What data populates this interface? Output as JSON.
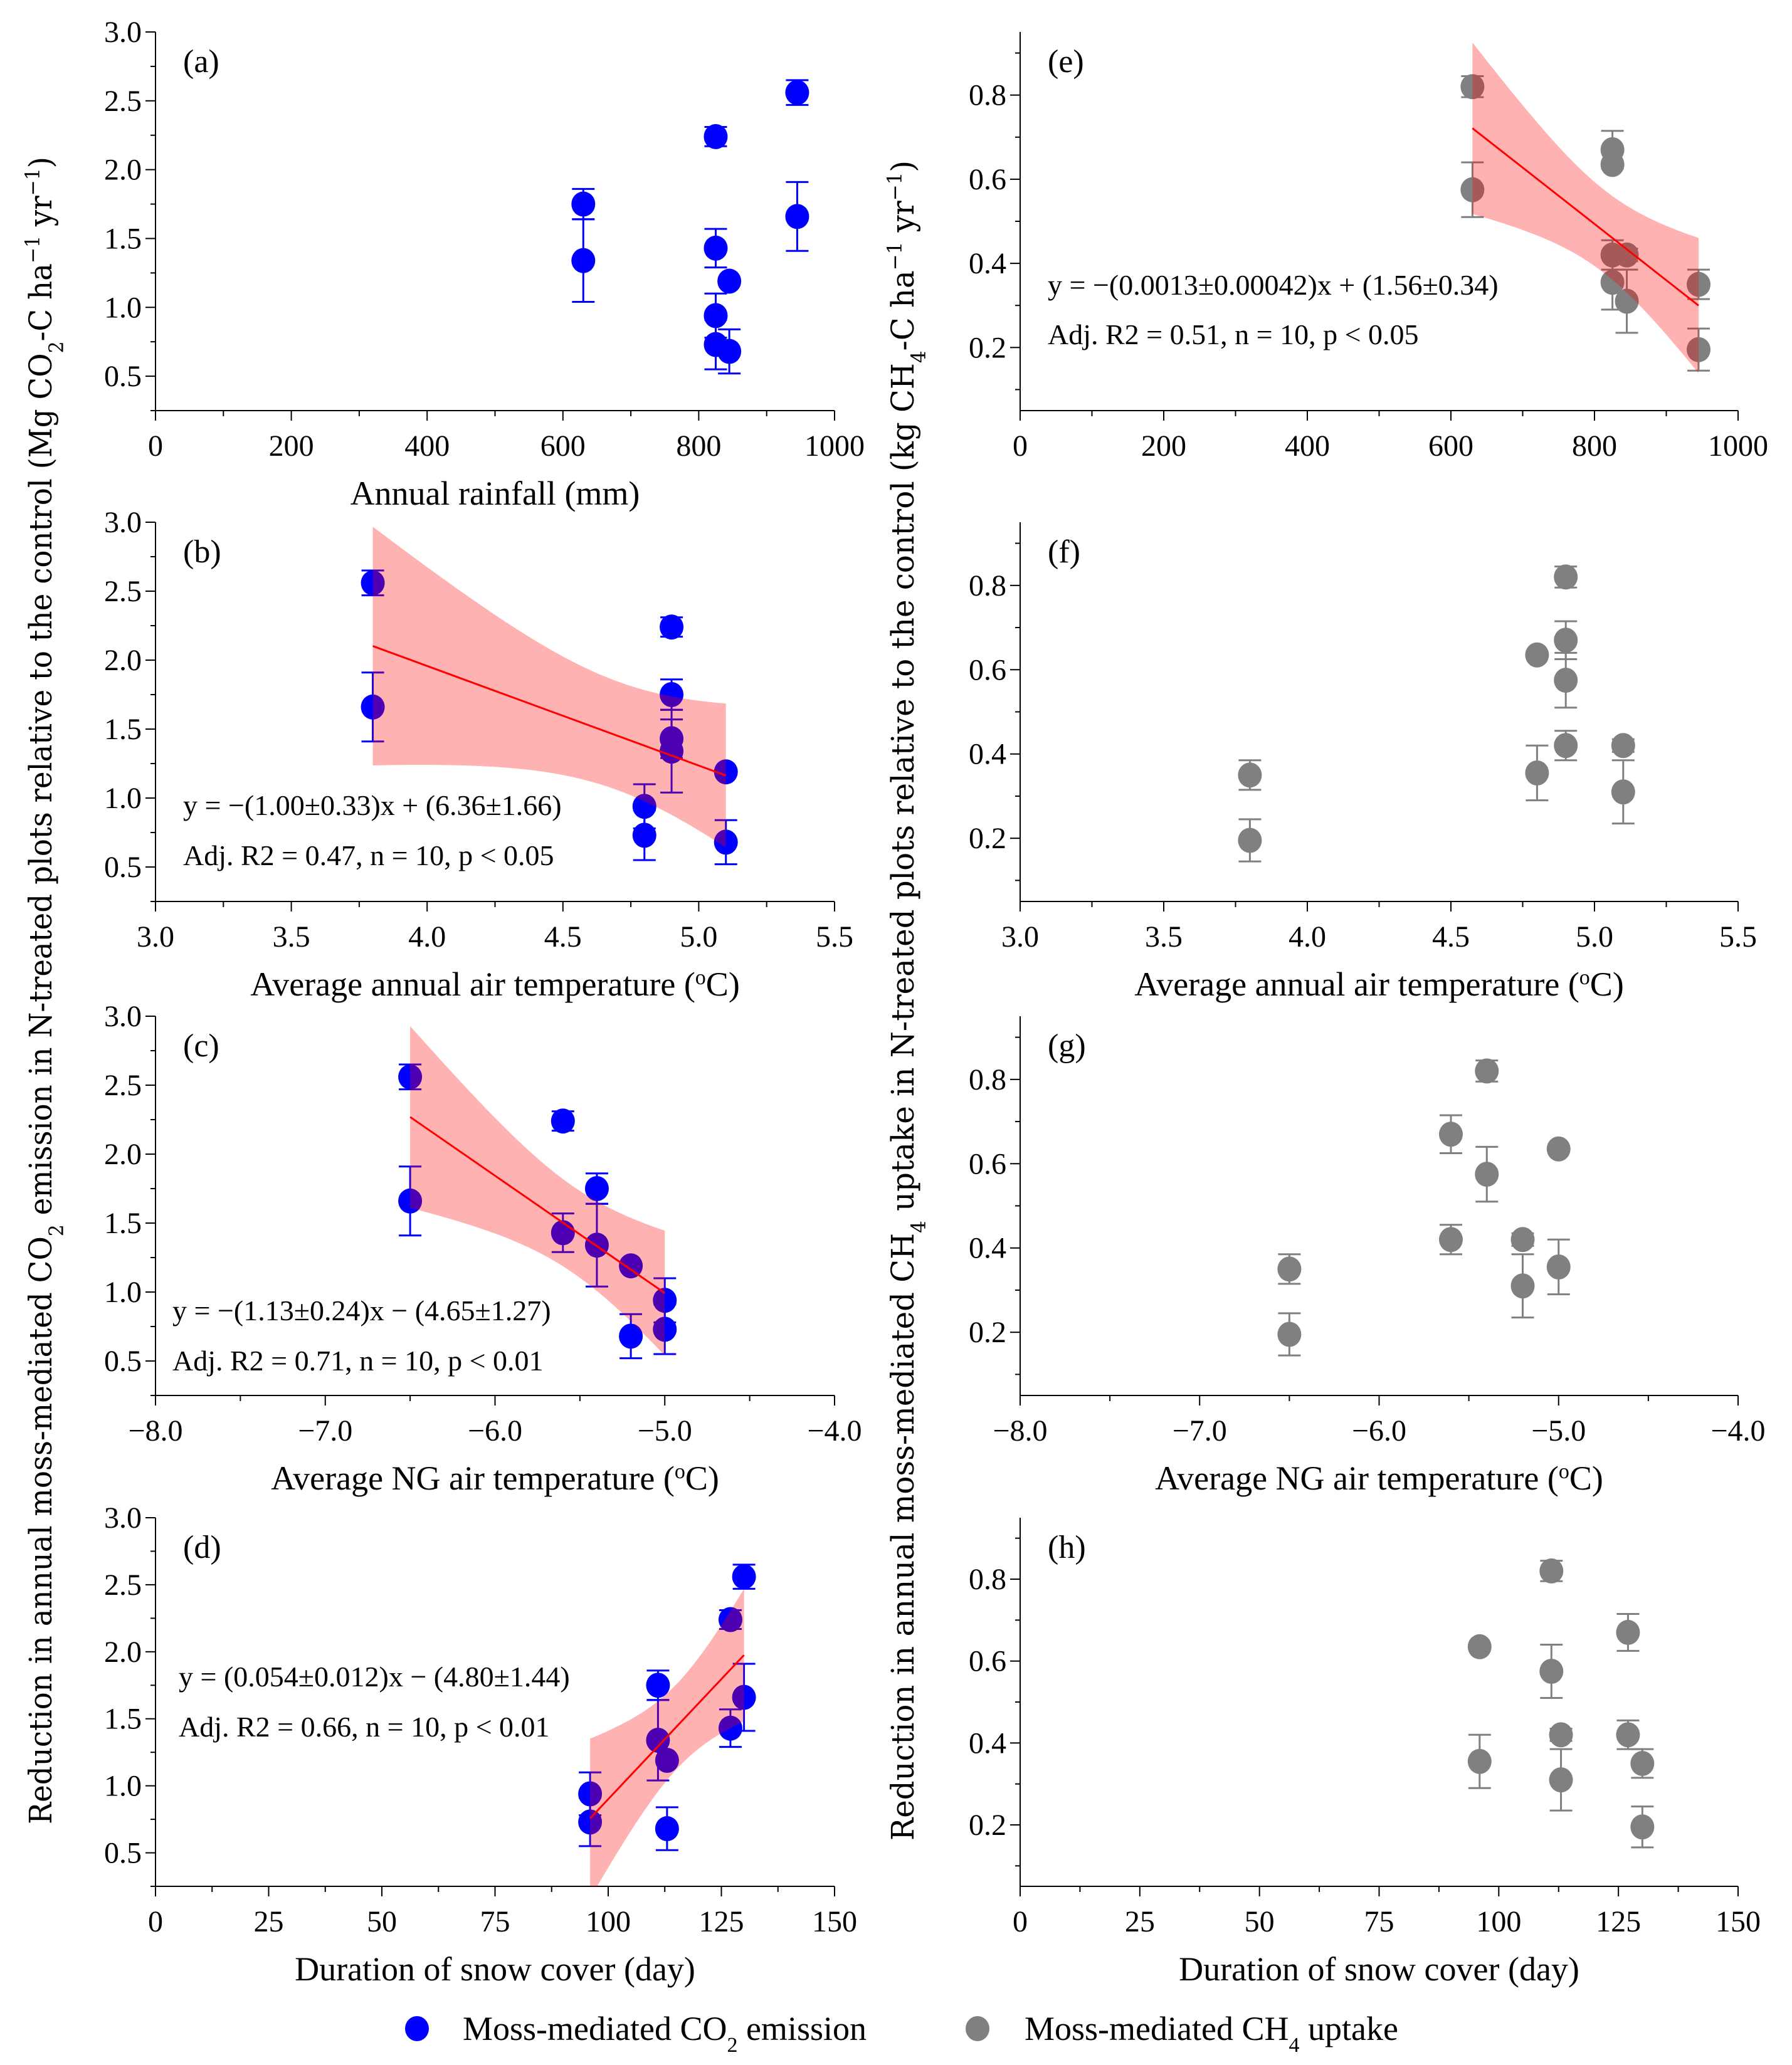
{
  "y_labels": {
    "left": "Reduction in annual moss-mediated CO2 emission in N-treated plots relative to the control (Mg CO2-C ha−1 yr−1)",
    "right": "Reduction in annual moss-mediated CH4 uptake in N-treated plots relative to the control (kg CH4-C ha−1 yr−1)"
  },
  "legend": {
    "co2": {
      "label": "Moss-mediated CO2 emission",
      "color": "#0000FF"
    },
    "ch4": {
      "label": "Moss-mediated CH4 uptake",
      "color": "#808080"
    }
  },
  "colors": {
    "band": "#FF0000",
    "fit_line": "#FF0000",
    "axis": "#000000"
  },
  "chart_data": [
    {
      "panel": "(a)",
      "type": "scatter",
      "xlabel": "Annual rainfall (mm)",
      "ylabel": "Mg CO2-C ha−1 yr−1",
      "xlim": [
        0,
        1000
      ],
      "ylim": [
        0.25,
        3.0
      ],
      "xticks": [
        0,
        200,
        400,
        600,
        800,
        1000
      ],
      "xtick_labels": [
        "0",
        "200",
        "400",
        "600",
        "800",
        "1000"
      ],
      "xminor": 100,
      "yticks": [
        0.5,
        1.0,
        1.5,
        2.0,
        2.5,
        3.0
      ],
      "ytick_labels": [
        "0.5",
        "1.0",
        "1.5",
        "2.0",
        "2.5",
        "3.0"
      ],
      "yminor": 0.25,
      "series": {
        "name": "Moss-mediated CO2 emission",
        "color": "#0000FF",
        "x": [
          945,
          945,
          825,
          825,
          630,
          630,
          845,
          845,
          825,
          825
        ],
        "y": [
          2.56,
          1.66,
          2.24,
          1.43,
          1.75,
          1.34,
          1.19,
          0.68,
          0.94,
          0.73
        ],
        "err": [
          0.09,
          0.25,
          0.07,
          0.14,
          0.11,
          0.3,
          0.0,
          0.16,
          0.16,
          0.18
        ]
      },
      "fit": null
    },
    {
      "panel": "(b)",
      "type": "scatter",
      "xlabel": "Average annual air temperature (ºC)",
      "ylabel": "Mg CO2-C ha−1 yr−1",
      "xlim": [
        3.0,
        5.5
      ],
      "ylim": [
        0.25,
        3.0
      ],
      "xticks": [
        3.0,
        3.5,
        4.0,
        4.5,
        5.0,
        5.5
      ],
      "xtick_labels": [
        "3.0",
        "3.5",
        "4.0",
        "4.5",
        "5.0",
        "5.5"
      ],
      "xminor": 0.25,
      "yticks": [
        0.5,
        1.0,
        1.5,
        2.0,
        2.5,
        3.0
      ],
      "ytick_labels": [
        "0.5",
        "1.0",
        "1.5",
        "2.0",
        "2.5",
        "3.0"
      ],
      "yminor": 0.25,
      "series": {
        "name": "Moss-mediated CO2 emission",
        "color": "#0000FF",
        "x": [
          3.8,
          3.8,
          4.9,
          4.9,
          4.9,
          4.9,
          5.1,
          5.1,
          4.8,
          4.8
        ],
        "y": [
          2.56,
          1.66,
          2.24,
          1.43,
          1.75,
          1.34,
          1.19,
          0.68,
          0.94,
          0.73
        ],
        "err": [
          0.09,
          0.25,
          0.07,
          0.14,
          0.11,
          0.3,
          0.0,
          0.16,
          0.16,
          0.18
        ]
      },
      "fit": {
        "equation": "y = −(1.00±0.33)x + (6.36±1.66)",
        "stats": "Adj. R2 = 0.47, n = 10, p < 0.05"
      }
    },
    {
      "panel": "(c)",
      "type": "scatter",
      "xlabel": "Average NG air temperature (ºC)",
      "ylabel": "Mg CO2-C ha−1 yr−1",
      "xlim": [
        -8.0,
        -4.0
      ],
      "ylim": [
        0.25,
        3.0
      ],
      "xticks": [
        -8,
        -7,
        -6,
        -5,
        -4
      ],
      "xtick_labels": [
        "−8.0",
        "−7.0",
        "−6.0",
        "−5.0",
        "−4.0"
      ],
      "xminor": 0.5,
      "yticks": [
        0.5,
        1.0,
        1.5,
        2.0,
        2.5,
        3.0
      ],
      "ytick_labels": [
        "0.5",
        "1.0",
        "1.5",
        "2.0",
        "2.5",
        "3.0"
      ],
      "yminor": 0.25,
      "series": {
        "name": "Moss-mediated CO2 emission",
        "color": "#0000FF",
        "x": [
          -6.5,
          -6.5,
          -5.6,
          -5.6,
          -5.4,
          -5.4,
          -5.2,
          -5.2,
          -5.0,
          -5.0
        ],
        "y": [
          2.56,
          1.66,
          2.24,
          1.43,
          1.75,
          1.34,
          1.19,
          0.68,
          0.94,
          0.73
        ],
        "err": [
          0.09,
          0.25,
          0.07,
          0.14,
          0.11,
          0.3,
          0.0,
          0.16,
          0.16,
          0.18
        ]
      },
      "fit": {
        "equation": "y = −(1.13±0.24)x − (4.65±1.27)",
        "stats": "Adj. R2 = 0.71, n = 10, p < 0.01"
      }
    },
    {
      "panel": "(d)",
      "type": "scatter",
      "xlabel": "Duration of snow cover (day)",
      "ylabel": "Mg CO2-C ha−1 yr−1",
      "xlim": [
        0,
        150
      ],
      "ylim": [
        0.25,
        3.0
      ],
      "xticks": [
        0,
        25,
        50,
        75,
        100,
        125,
        150
      ],
      "xtick_labels": [
        "0",
        "25",
        "50",
        "75",
        "100",
        "125",
        "150"
      ],
      "xminor": 12.5,
      "yticks": [
        0.5,
        1.0,
        1.5,
        2.0,
        2.5,
        3.0
      ],
      "ytick_labels": [
        "0.5",
        "1.0",
        "1.5",
        "2.0",
        "2.5",
        "3.0"
      ],
      "yminor": 0.25,
      "series": {
        "name": "Moss-mediated CO2 emission",
        "color": "#0000FF",
        "x": [
          130,
          130,
          127,
          127,
          111,
          111,
          113,
          113,
          96,
          96
        ],
        "y": [
          2.56,
          1.66,
          2.24,
          1.43,
          1.75,
          1.34,
          1.19,
          0.68,
          0.94,
          0.73
        ],
        "err": [
          0.09,
          0.25,
          0.07,
          0.14,
          0.11,
          0.3,
          0.0,
          0.16,
          0.16,
          0.18
        ]
      },
      "fit": {
        "equation": "y = (0.054±0.012)x − (4.80±1.44)",
        "stats": "Adj. R2 = 0.66, n = 10, p < 0.01"
      }
    },
    {
      "panel": "(e)",
      "type": "scatter",
      "xlabel": "",
      "ylabel": "kg CH4-C ha−1 yr−1",
      "xlim": [
        0,
        1000
      ],
      "ylim": [
        0.05,
        0.95
      ],
      "xticks": [
        0,
        200,
        400,
        600,
        800,
        1000
      ],
      "xtick_labels": [
        "0",
        "200",
        "400",
        "600",
        "800",
        "1000"
      ],
      "xminor": 100,
      "yticks": [
        0.2,
        0.4,
        0.6,
        0.8
      ],
      "ytick_labels": [
        "0.2",
        "0.4",
        "0.6",
        "0.8"
      ],
      "yminor": 0.1,
      "series": {
        "name": "Moss-mediated CH4 uptake",
        "color": "#808080",
        "x": [
          945,
          945,
          825,
          825,
          630,
          630,
          845,
          845,
          825,
          825
        ],
        "y": [
          0.35,
          0.195,
          0.67,
          0.42,
          0.82,
          0.575,
          0.42,
          0.31,
          0.635,
          0.355
        ],
        "err": [
          0.035,
          0.05,
          0.045,
          0.035,
          0.025,
          0.065,
          0.015,
          0.075,
          0.0,
          0.065
        ]
      },
      "fit": {
        "equation": "y = −(0.0013±0.00042)x + (1.56±0.34)",
        "stats": "Adj. R2 = 0.51, n = 10, p < 0.05"
      }
    },
    {
      "panel": "(f)",
      "type": "scatter",
      "xlabel": "Average annual air temperature (ºC)",
      "ylabel": "kg CH4-C ha−1 yr−1",
      "xlim": [
        3.0,
        5.5
      ],
      "ylim": [
        0.05,
        0.95
      ],
      "xticks": [
        3.0,
        3.5,
        4.0,
        4.5,
        5.0,
        5.5
      ],
      "xtick_labels": [
        "3.0",
        "3.5",
        "4.0",
        "4.5",
        "5.0",
        "5.5"
      ],
      "xminor": 0.25,
      "yticks": [
        0.2,
        0.4,
        0.6,
        0.8
      ],
      "ytick_labels": [
        "0.2",
        "0.4",
        "0.6",
        "0.8"
      ],
      "yminor": 0.1,
      "series": {
        "name": "Moss-mediated CH4 uptake",
        "color": "#808080",
        "x": [
          3.8,
          3.8,
          4.9,
          4.9,
          4.9,
          4.9,
          5.1,
          5.1,
          4.8,
          4.8
        ],
        "y": [
          0.35,
          0.195,
          0.67,
          0.42,
          0.82,
          0.575,
          0.42,
          0.31,
          0.635,
          0.355
        ],
        "err": [
          0.035,
          0.05,
          0.045,
          0.035,
          0.025,
          0.065,
          0.015,
          0.075,
          0.0,
          0.065
        ]
      },
      "fit": null
    },
    {
      "panel": "(g)",
      "type": "scatter",
      "xlabel": "Average NG air temperature (ºC)",
      "ylabel": "kg CH4-C ha−1 yr−1",
      "xlim": [
        -8.0,
        -4.0
      ],
      "ylim": [
        0.05,
        0.95
      ],
      "xticks": [
        -8,
        -7,
        -6,
        -5,
        -4
      ],
      "xtick_labels": [
        "−8.0",
        "−7.0",
        "−6.0",
        "−5.0",
        "−4.0"
      ],
      "xminor": 0.5,
      "yticks": [
        0.2,
        0.4,
        0.6,
        0.8
      ],
      "ytick_labels": [
        "0.2",
        "0.4",
        "0.6",
        "0.8"
      ],
      "yminor": 0.1,
      "series": {
        "name": "Moss-mediated CH4 uptake",
        "color": "#808080",
        "x": [
          -6.5,
          -6.5,
          -5.6,
          -5.6,
          -5.4,
          -5.4,
          -5.2,
          -5.2,
          -5.0,
          -5.0
        ],
        "y": [
          0.35,
          0.195,
          0.67,
          0.42,
          0.82,
          0.575,
          0.42,
          0.31,
          0.635,
          0.355
        ],
        "err": [
          0.035,
          0.05,
          0.045,
          0.035,
          0.025,
          0.065,
          0.015,
          0.075,
          0.0,
          0.065
        ]
      },
      "fit": null
    },
    {
      "panel": "(h)",
      "type": "scatter",
      "xlabel": "Duration of snow cover (day)",
      "ylabel": "kg CH4-C ha−1 yr−1",
      "xlim": [
        0,
        150
      ],
      "ylim": [
        0.05,
        0.95
      ],
      "xticks": [
        0,
        25,
        50,
        75,
        100,
        125,
        150
      ],
      "xtick_labels": [
        "0",
        "25",
        "50",
        "75",
        "100",
        "125",
        "150"
      ],
      "xminor": 12.5,
      "yticks": [
        0.2,
        0.4,
        0.6,
        0.8
      ],
      "ytick_labels": [
        "0.2",
        "0.4",
        "0.6",
        "0.8"
      ],
      "yminor": 0.1,
      "series": {
        "name": "Moss-mediated CH4 uptake",
        "color": "#808080",
        "x": [
          130,
          130,
          127,
          127,
          111,
          111,
          113,
          113,
          96,
          96
        ],
        "y": [
          0.35,
          0.195,
          0.67,
          0.42,
          0.82,
          0.575,
          0.42,
          0.31,
          0.635,
          0.355
        ],
        "err": [
          0.035,
          0.05,
          0.045,
          0.035,
          0.025,
          0.065,
          0.015,
          0.075,
          0.0,
          0.065
        ]
      },
      "fit": null
    }
  ]
}
